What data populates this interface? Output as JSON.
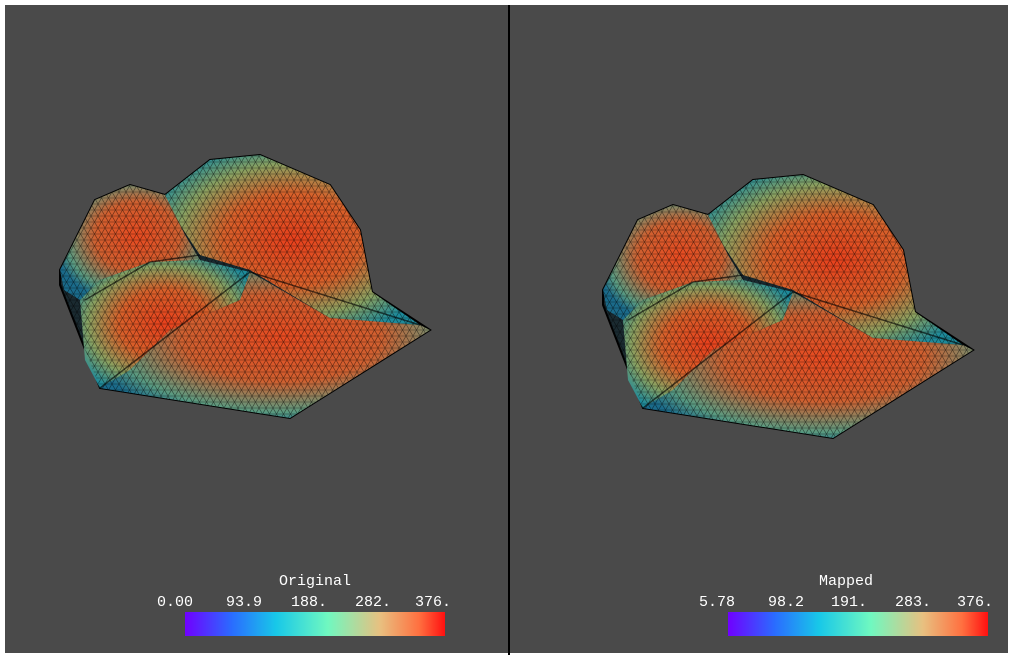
{
  "panels": [
    {
      "title": "Original",
      "ticks": [
        "0.00",
        "93.9",
        "188.",
        "282.",
        "376."
      ]
    },
    {
      "title": "Mapped",
      "ticks": [
        "5.78",
        "98.2",
        "191.",
        "283.",
        "376."
      ]
    }
  ]
}
